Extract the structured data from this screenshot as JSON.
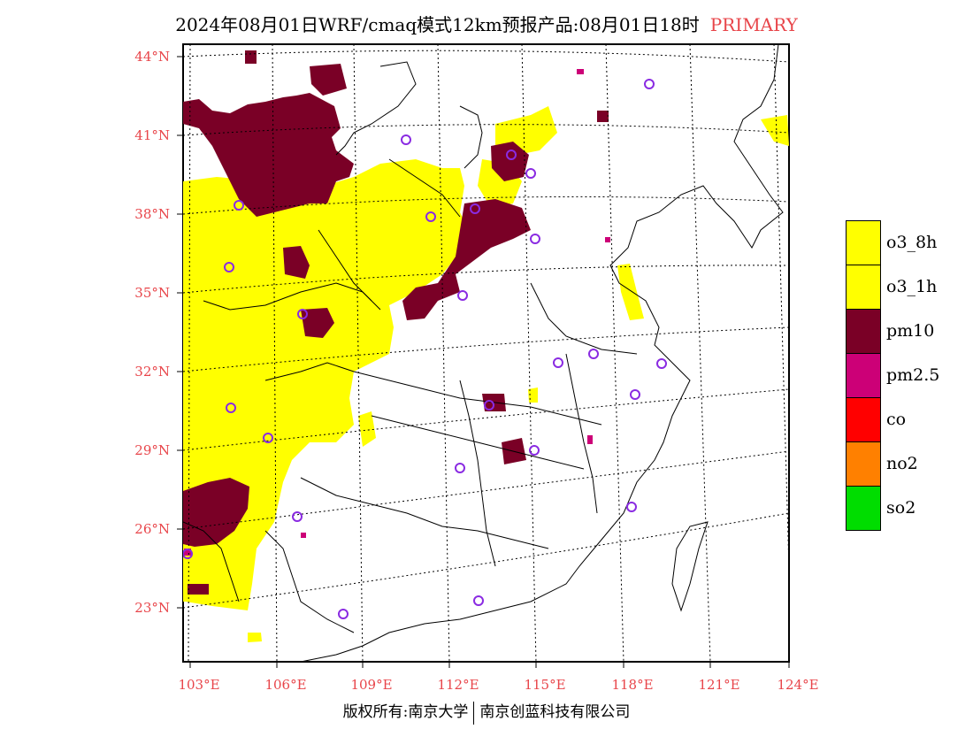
{
  "title": {
    "text": "2024年08月01日WRF/cmaq模式12km预报产品:08月01日18时",
    "tag": "PRIMARY"
  },
  "axes": {
    "lat_labels": [
      "44°N",
      "41°N",
      "38°N",
      "35°N",
      "32°N",
      "29°N",
      "26°N",
      "23°N"
    ],
    "lon_labels": [
      "103°E",
      "106°E",
      "109°E",
      "112°E",
      "115°E",
      "118°E",
      "121°E",
      "124°E"
    ]
  },
  "legend": {
    "items": [
      {
        "label": "o3_8h",
        "color": "#ffff00"
      },
      {
        "label": "o3_1h",
        "color": "#ffff00"
      },
      {
        "label": "pm10",
        "color": "#7a0026"
      },
      {
        "label": "pm2.5",
        "color": "#cc0077"
      },
      {
        "label": "co",
        "color": "#ff0000"
      },
      {
        "label": "no2",
        "color": "#ff8000"
      },
      {
        "label": "so2",
        "color": "#00dd00"
      }
    ]
  },
  "footer": {
    "left": "版权所有:南京大学",
    "right": "南京创蓝科技有限公司"
  },
  "colors": {
    "label_red": "#e8454a",
    "o3": "#ffff00",
    "pm10": "#7a0026",
    "pm25": "#cc0077",
    "station_marker": "#8a2be2"
  }
}
